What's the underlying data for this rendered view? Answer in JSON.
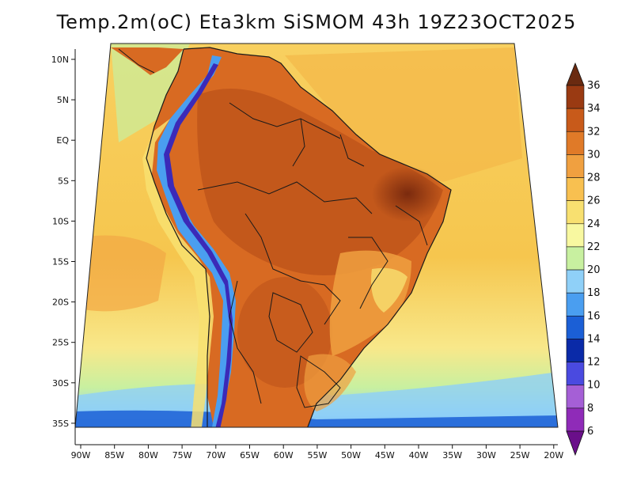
{
  "title": "Temp.2m(oC) Eta3km SiSMOM 43h 19Z23OCT2025",
  "axes": {
    "lon_labels": [
      "90W",
      "85W",
      "80W",
      "75W",
      "70W",
      "65W",
      "60W",
      "55W",
      "50W",
      "45W",
      "40W",
      "35W",
      "30W",
      "25W",
      "20W"
    ],
    "lat_labels": [
      "10N",
      "5N",
      "EQ",
      "5S",
      "10S",
      "15S",
      "20S",
      "25S",
      "30S",
      "35S"
    ]
  },
  "colorbar": {
    "levels": [
      "6",
      "8",
      "10",
      "12",
      "14",
      "16",
      "18",
      "20",
      "22",
      "24",
      "26",
      "28",
      "30",
      "32",
      "34",
      "36"
    ],
    "colors": [
      "#6a0f8a",
      "#8f2bb8",
      "#a55fd6",
      "#4a4ae0",
      "#0a2aa8",
      "#1b5fd6",
      "#4a9ef0",
      "#8fd0f8",
      "#c8f0a0",
      "#f8f8a0",
      "#f8e070",
      "#f8c050",
      "#f0a040",
      "#e07a28",
      "#c85a1a",
      "#9a3a12",
      "#6a2a10"
    ]
  }
}
